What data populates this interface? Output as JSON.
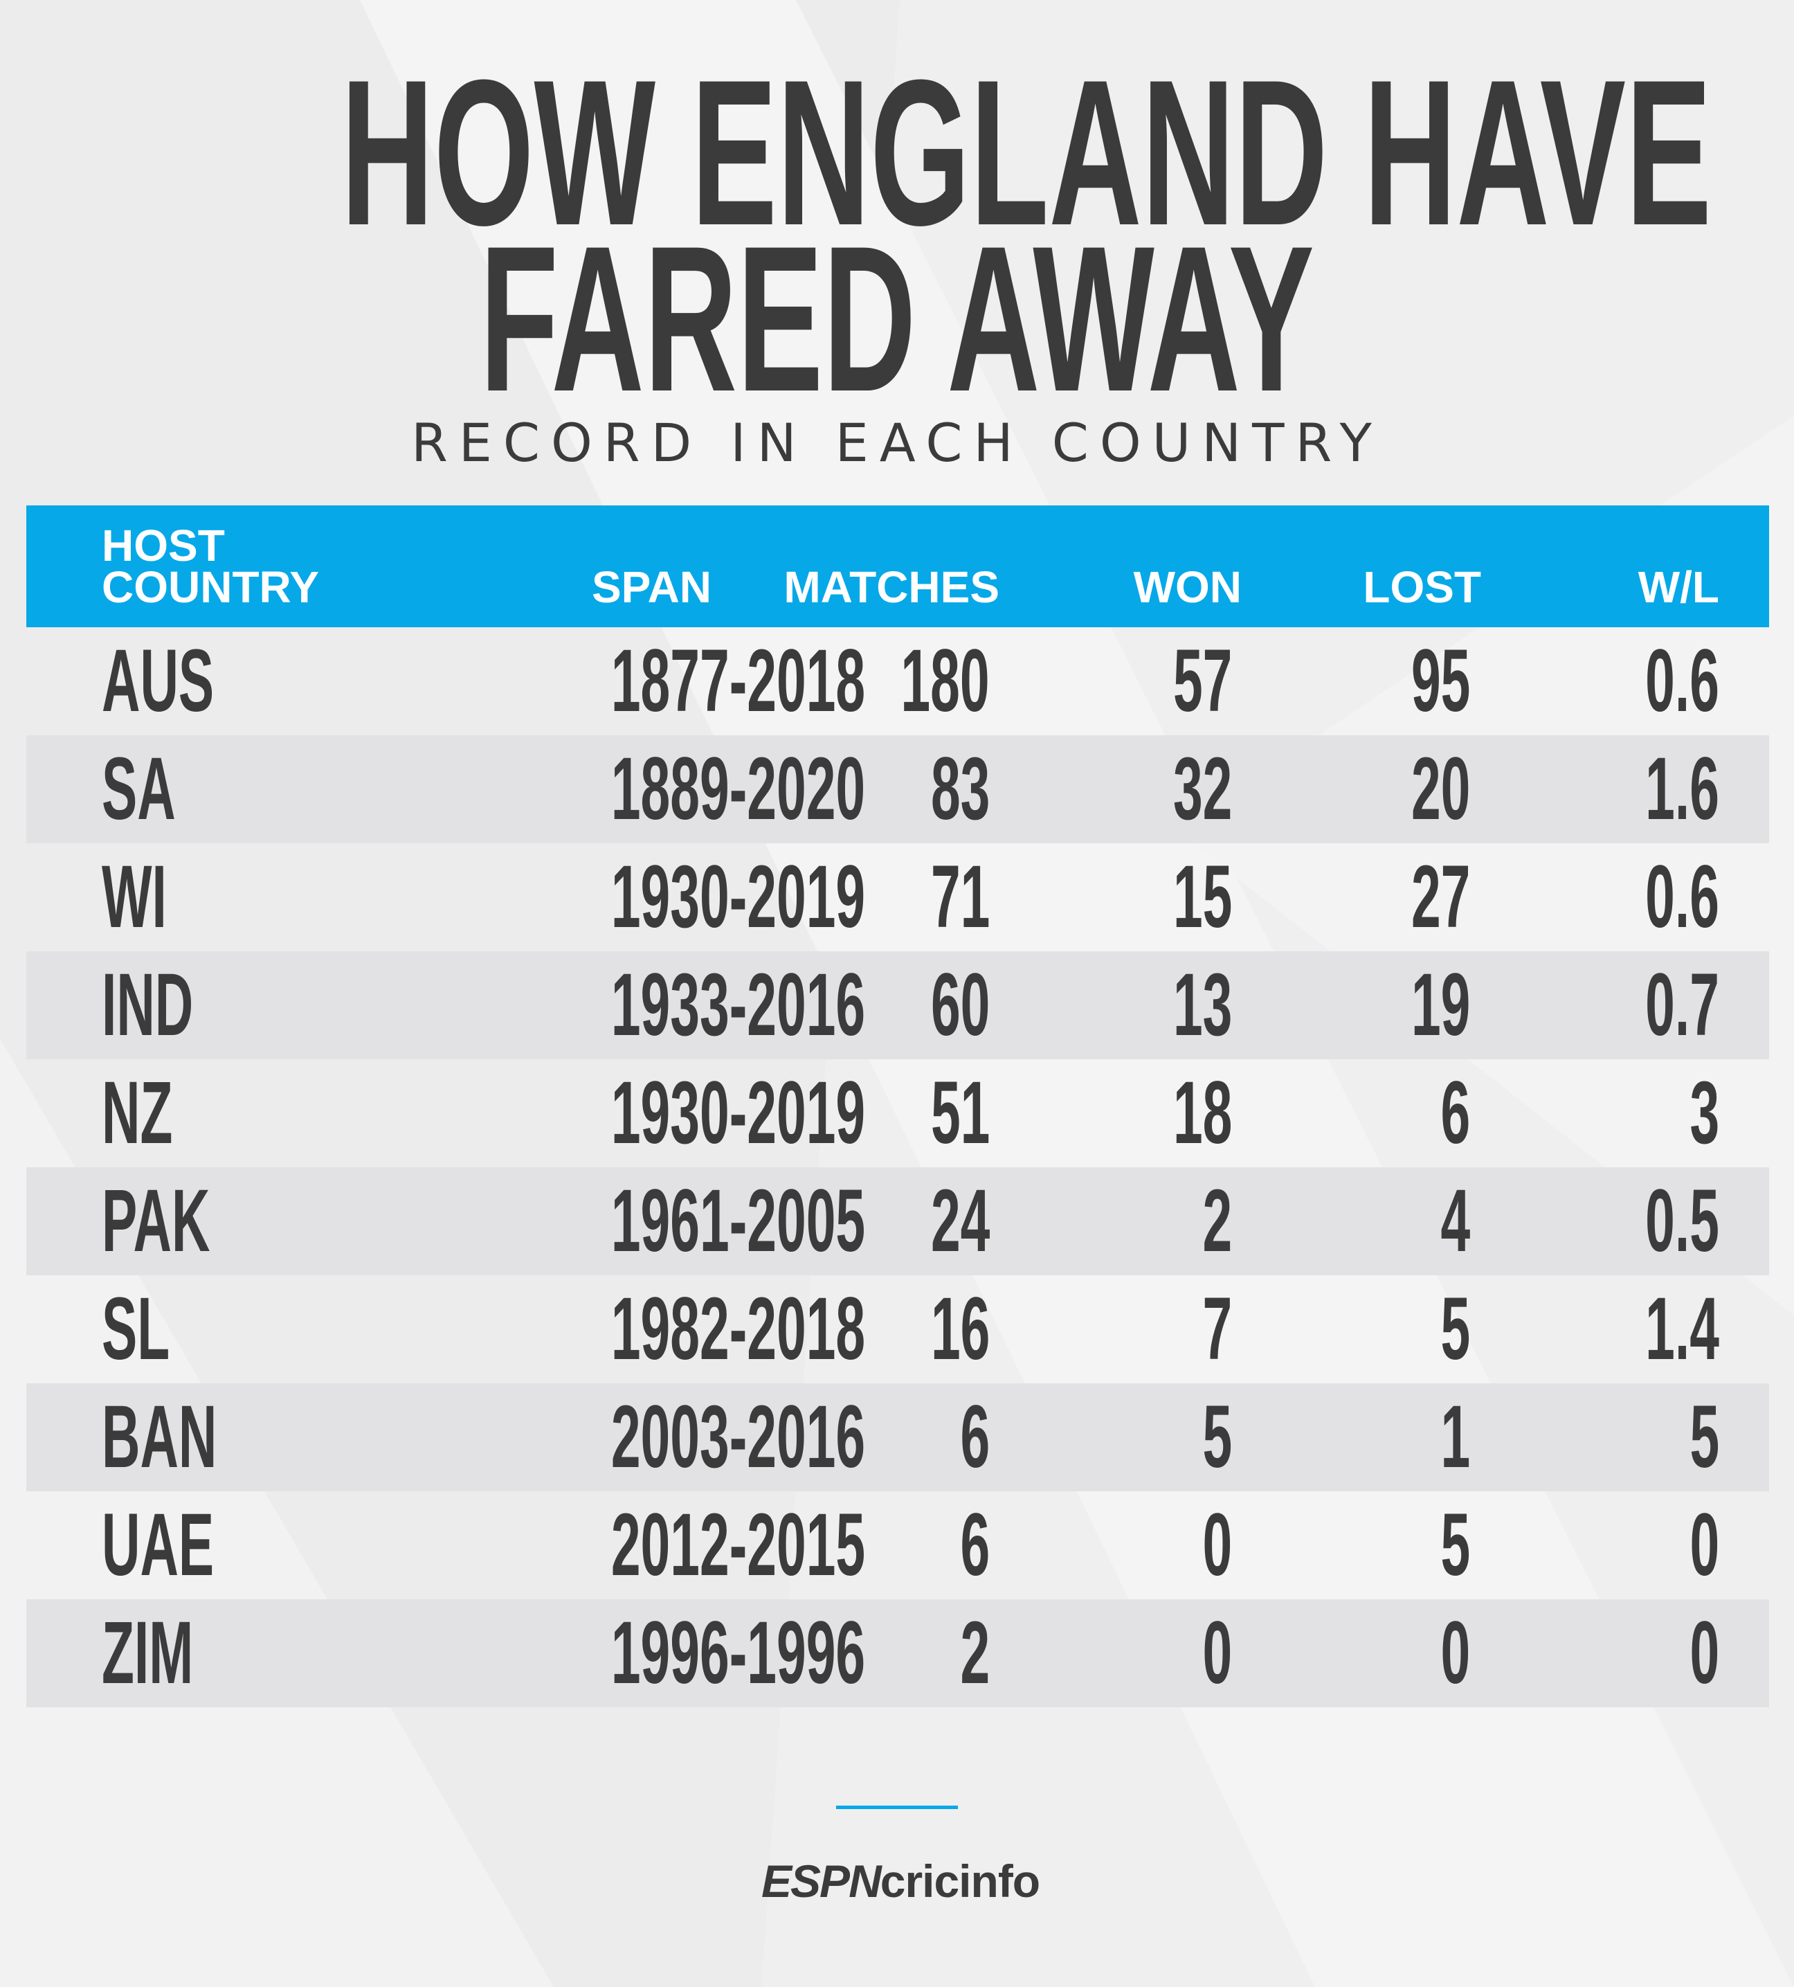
{
  "title_lines": [
    "HOW ENGLAND HAVE",
    "FARED AWAY"
  ],
  "subtitle": "RECORD IN EACH COUNTRY",
  "colors": {
    "header_bg": "#06a8e8",
    "header_text": "#ffffff",
    "text": "#3b3b3c",
    "row_alt": "#e2e2e4",
    "background": "#efeff0"
  },
  "chart_data": {
    "type": "table",
    "title": "HOW ENGLAND HAVE FARED AWAY",
    "subtitle": "RECORD IN EACH COUNTRY",
    "columns": [
      "HOST COUNTRY",
      "SPAN",
      "MATCHES",
      "WON",
      "LOST",
      "W/L"
    ],
    "header_labels": {
      "host": [
        "HOST",
        "COUNTRY"
      ],
      "span": "SPAN",
      "matches": "MATCHES",
      "won": "WON",
      "lost": "LOST",
      "wl": "W/L"
    },
    "rows": [
      {
        "host": "AUS",
        "span": "1877-2018",
        "matches": "180",
        "won": "57",
        "lost": "95",
        "wl": "0.6"
      },
      {
        "host": "SA",
        "span": "1889-2020",
        "matches": "83",
        "won": "32",
        "lost": "20",
        "wl": "1.6"
      },
      {
        "host": "WI",
        "span": "1930-2019",
        "matches": "71",
        "won": "15",
        "lost": "27",
        "wl": "0.6"
      },
      {
        "host": "IND",
        "span": "1933-2016",
        "matches": "60",
        "won": "13",
        "lost": "19",
        "wl": "0.7"
      },
      {
        "host": "NZ",
        "span": "1930-2019",
        "matches": "51",
        "won": "18",
        "lost": "6",
        "wl": "3"
      },
      {
        "host": "PAK",
        "span": "1961-2005",
        "matches": "24",
        "won": "2",
        "lost": "4",
        "wl": "0.5"
      },
      {
        "host": "SL",
        "span": "1982-2018",
        "matches": "16",
        "won": "7",
        "lost": "5",
        "wl": "1.4"
      },
      {
        "host": "BAN",
        "span": "2003-2016",
        "matches": "6",
        "won": "5",
        "lost": "1",
        "wl": "5"
      },
      {
        "host": "UAE",
        "span": "2012-2015",
        "matches": "6",
        "won": "0",
        "lost": "5",
        "wl": "0"
      },
      {
        "host": "ZIM",
        "span": "1996-1996",
        "matches": "2",
        "won": "0",
        "lost": "0",
        "wl": "0"
      }
    ]
  },
  "footer": {
    "logo_espn": "ESPN",
    "logo_rest": "cricinfo"
  }
}
